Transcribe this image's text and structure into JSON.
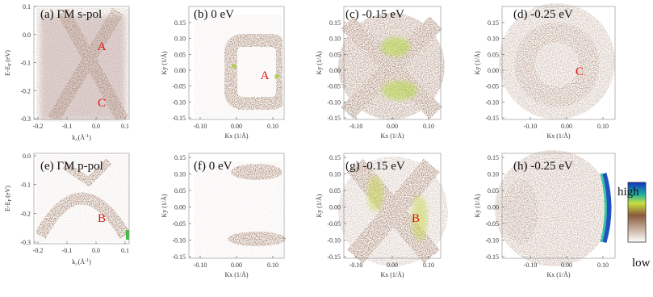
{
  "panels": [
    {
      "label": "(a) ΓM s-pol",
      "y_label": [
        "E-E",
        "F",
        "(eV)"
      ],
      "x_label": [
        "k",
        "//",
        "(Å",
        "-1",
        ")"
      ],
      "yticks": [
        "0.1",
        "0.0",
        "-0.1",
        "-0.2",
        "-0.3"
      ],
      "xticks": [
        "-0.2",
        "-0.1",
        "0.0",
        "0.1"
      ],
      "annotations": [
        "A",
        "C"
      ]
    },
    {
      "label": "(b) 0 eV",
      "y_label": "Ky (1/Å)",
      "x_label": "Kx (1/Å)",
      "yticks": [
        "0.15",
        "0.10",
        "0.05",
        "0.00",
        "-0.05",
        "-0.10",
        "-0.15"
      ],
      "xticks": [
        "-0.10",
        "0.00",
        "0.10"
      ],
      "annotations": [
        "A"
      ]
    },
    {
      "label": "(c) -0.15 eV",
      "y_label": "Ky (1/Å)",
      "x_label": "Kx (1/Å)",
      "yticks": [
        "0.15",
        "0.10",
        "0.05",
        "0.00",
        "-0.05",
        "-0.10",
        "-0.15"
      ],
      "xticks": [
        "-0.10",
        "0.00",
        "0.10"
      ],
      "annotations": []
    },
    {
      "label": "(d) -0.25 eV",
      "y_label": "Ky (1/Å)",
      "x_label": "Kx (1/Å)",
      "yticks": [
        "0.15",
        "0.10",
        "0.05",
        "0.00",
        "-0.05",
        "-0.10",
        "-0.15"
      ],
      "xticks": [
        "-0.10",
        "0.00",
        "0.10"
      ],
      "annotations": [
        "C"
      ]
    },
    {
      "label": "(e) ΓM p-pol",
      "y_label": [
        "E-E",
        "F",
        "(eV)"
      ],
      "x_label": [
        "k",
        "//",
        "(Å",
        "-1",
        ")"
      ],
      "yticks": [
        "0.0",
        "-0.1",
        "-0.2",
        "-0.3"
      ],
      "xticks": [
        "-0.2",
        "-0.1",
        "0.0",
        "0.1"
      ],
      "annotations": [
        "B"
      ]
    },
    {
      "label": "(f) 0 eV",
      "y_label": "Ky (1/Å)",
      "x_label": "Kx (1/Å)",
      "yticks": [
        "0.15",
        "0.10",
        "0.05",
        "0.00",
        "-0.05",
        "-0.10",
        "-0.15"
      ],
      "xticks": [
        "-0.10",
        "0.00",
        "0.10"
      ],
      "annotations": []
    },
    {
      "label": "(g) -0.15 eV",
      "y_label": "Ky (1/Å)",
      "x_label": "Kx (1/Å)",
      "yticks": [
        "0.15",
        "0.10",
        "0.05",
        "0.00",
        "-0.05",
        "-0.10",
        "-0.15"
      ],
      "xticks": [
        "-0.10",
        "0.00",
        "0.10"
      ],
      "annotations": [
        "B"
      ]
    },
    {
      "label": "(h) -0.25 eV",
      "y_label": "Ky (1/Å)",
      "x_label": "Kx (1/Å)",
      "yticks": [
        "0.15",
        "0.10",
        "0.05",
        "0.00",
        "-0.05",
        "-0.10",
        "-0.15"
      ],
      "xticks": [
        "-0.10",
        "0.00",
        "0.10"
      ],
      "annotations": []
    }
  ],
  "colorbar": {
    "high": "high",
    "low": "low"
  }
}
